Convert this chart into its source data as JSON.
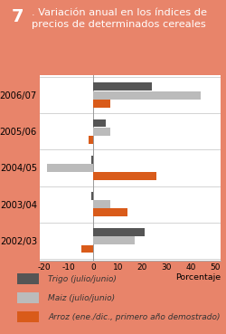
{
  "title_number": "7",
  "title_rest": ". Variación anual en los índices de\nprecios de determinados cereales",
  "header_bg": "#E8846A",
  "categories": [
    "2006/07",
    "2005/06",
    "2004/05",
    "2003/04",
    "2002/03"
  ],
  "trigo": [
    24,
    5,
    -1,
    -1,
    21
  ],
  "maiz": [
    44,
    7,
    -19,
    7,
    17
  ],
  "arroz": [
    7,
    -2,
    26,
    14,
    -5
  ],
  "trigo_color": "#555555",
  "maiz_color": "#BBBBBB",
  "arroz_color": "#D95B1A",
  "xlim": [
    -22,
    52
  ],
  "xticks": [
    -20,
    -10,
    0,
    10,
    20,
    30,
    40,
    50
  ],
  "xlabel": "Porcentaje",
  "legend_labels": [
    "Trigo (julio/junio)",
    "Maiz (julio/junio)",
    "Arroz (ene./dic., primero año demostrado)"
  ],
  "bar_height": 0.23,
  "background_color": "#FFFFFF",
  "border_color": "#CCCCCC"
}
